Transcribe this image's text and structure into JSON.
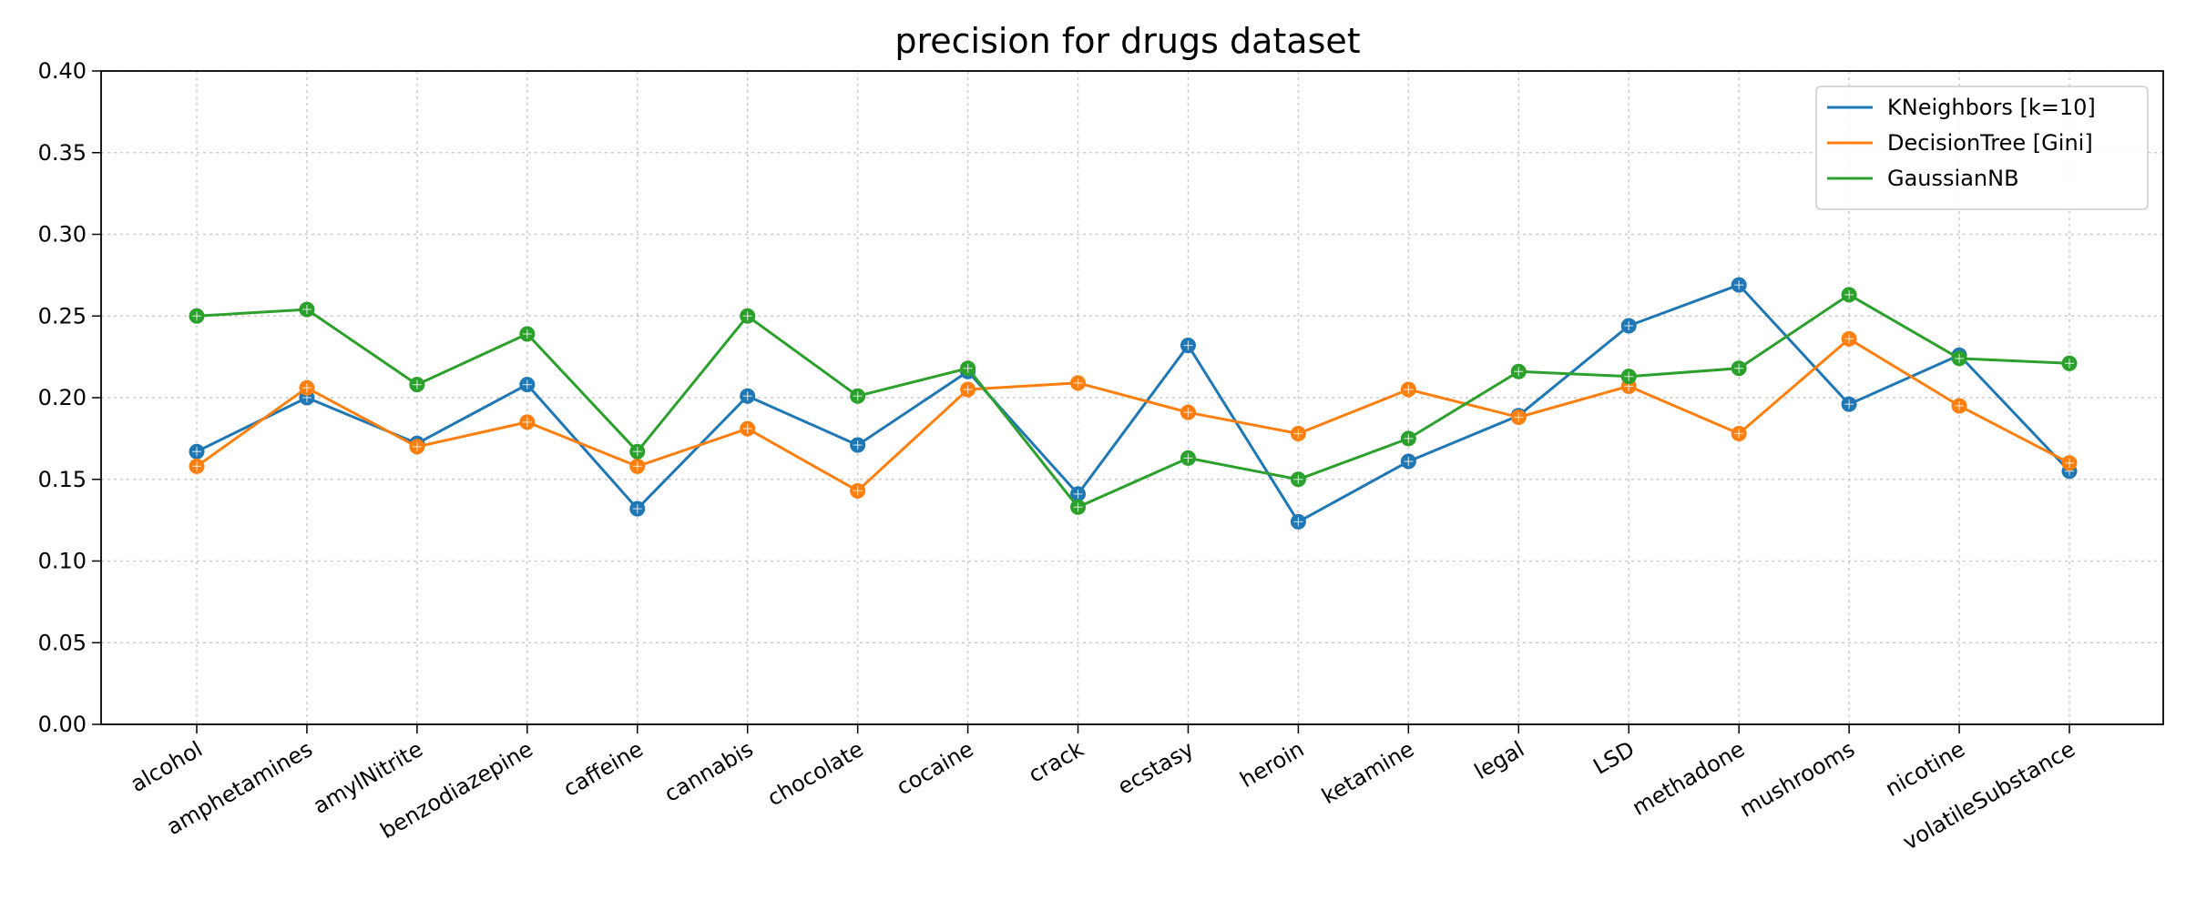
{
  "chart_data": {
    "type": "line",
    "title": "precision for drugs dataset",
    "xlabel": "",
    "ylabel": "",
    "ylim": [
      0.0,
      0.4
    ],
    "yticks": [
      "0.00",
      "0.05",
      "0.10",
      "0.15",
      "0.20",
      "0.25",
      "0.30",
      "0.35",
      "0.40"
    ],
    "grid": true,
    "legend_position": "top-right",
    "categories": [
      "alcohol",
      "amphetamines",
      "amylNitrite",
      "benzodiazepine",
      "caffeine",
      "cannabis",
      "chocolate",
      "cocaine",
      "crack",
      "ecstasy",
      "heroin",
      "ketamine",
      "legal",
      "LSD",
      "methadone",
      "mushrooms",
      "nicotine",
      "volatileSubstance"
    ],
    "series": [
      {
        "name": "KNeighbors [k=10]",
        "color": "#1f77b4",
        "values": [
          0.167,
          0.2,
          0.172,
          0.208,
          0.132,
          0.201,
          0.171,
          0.216,
          0.141,
          0.232,
          0.124,
          0.161,
          0.189,
          0.244,
          0.269,
          0.196,
          0.226,
          0.155
        ]
      },
      {
        "name": "DecisionTree [Gini]",
        "color": "#ff7f0e",
        "values": [
          0.158,
          0.206,
          0.17,
          0.185,
          0.158,
          0.181,
          0.143,
          0.205,
          0.209,
          0.191,
          0.178,
          0.205,
          0.188,
          0.207,
          0.178,
          0.236,
          0.195,
          0.16
        ]
      },
      {
        "name": "GaussianNB",
        "color": "#2ca02c",
        "values": [
          0.25,
          0.254,
          0.208,
          0.239,
          0.167,
          0.25,
          0.201,
          0.218,
          0.133,
          0.163,
          0.15,
          0.175,
          0.216,
          0.213,
          0.218,
          0.263,
          0.224,
          0.221
        ]
      }
    ]
  }
}
